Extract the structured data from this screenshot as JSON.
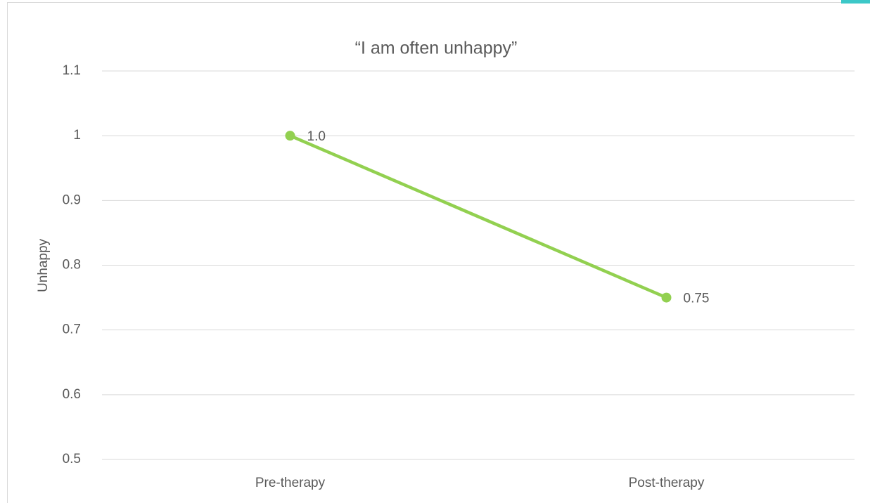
{
  "chart_data": {
    "type": "line",
    "title": "“I am often unhappy”",
    "y_label": "Unhappy",
    "categories": [
      "Pre-therapy",
      "Post-therapy"
    ],
    "series": [
      {
        "name": "Unhappy",
        "color": "#92d050",
        "values": [
          1,
          0.75
        ],
        "value_labels": [
          "1.0",
          "0.75"
        ]
      }
    ],
    "ylim": [
      0.5,
      1.1
    ],
    "yticks": [
      0.5,
      0.6,
      0.7,
      0.8,
      0.9,
      1,
      1.1
    ],
    "grid": true
  }
}
